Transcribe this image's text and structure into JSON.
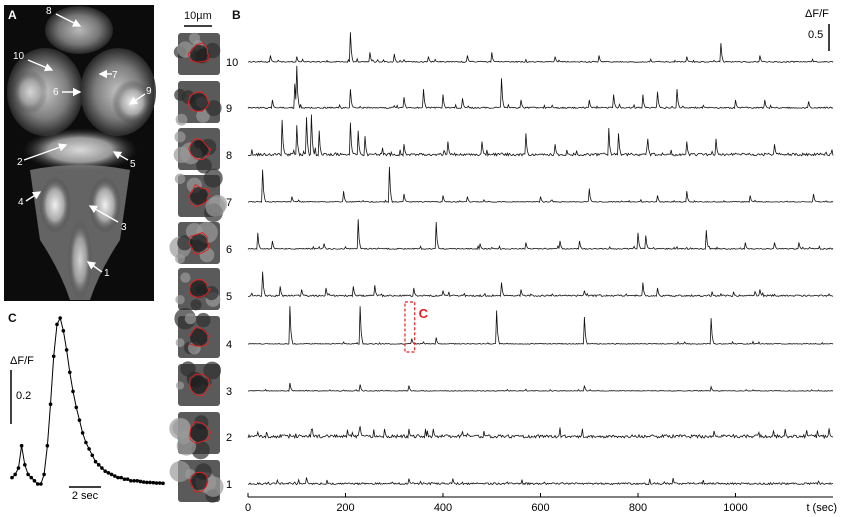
{
  "panel_a": {
    "letter": "A",
    "markers": [
      {
        "label": "8"
      },
      {
        "label": "10"
      },
      {
        "label": "7"
      },
      {
        "label": "6"
      },
      {
        "label": "9"
      },
      {
        "label": "2"
      },
      {
        "label": "5"
      },
      {
        "label": "4"
      },
      {
        "label": "3"
      },
      {
        "label": "1"
      }
    ]
  },
  "roi_column": {
    "scale_bar_label": "10µm",
    "roi_outline_color": "#e02020"
  },
  "colors": {
    "trace": "#111111",
    "highlight": "#e02020"
  },
  "chart_data": [
    {
      "type": "line",
      "panel": "B",
      "xlabel": "t (sec)",
      "xlim": [
        0,
        1200
      ],
      "x_ticks": [
        0,
        200,
        400,
        600,
        800,
        1000
      ],
      "scale_bar": {
        "label": "ΔF/F",
        "value_label": "0.5"
      },
      "highlight_box_label": "C",
      "highlight_box_trace": "4",
      "series": [
        {
          "name": "10",
          "peaks": [
            [
              210,
              0.55
            ],
            [
              45,
              0.12
            ],
            [
              100,
              0.1
            ],
            [
              250,
              0.18
            ],
            [
              300,
              0.15
            ],
            [
              370,
              0.1
            ],
            [
              450,
              0.12
            ],
            [
              500,
              0.18
            ],
            [
              630,
              0.1
            ],
            [
              720,
              0.12
            ],
            [
              900,
              0.1
            ],
            [
              970,
              0.35
            ],
            [
              1050,
              0.12
            ]
          ]
        },
        {
          "name": "9",
          "peaks": [
            [
              100,
              0.78
            ],
            [
              95,
              0.45
            ],
            [
              50,
              0.15
            ],
            [
              210,
              0.35
            ],
            [
              320,
              0.2
            ],
            [
              360,
              0.35
            ],
            [
              400,
              0.25
            ],
            [
              440,
              0.18
            ],
            [
              520,
              0.55
            ],
            [
              560,
              0.15
            ],
            [
              700,
              0.15
            ],
            [
              750,
              0.25
            ],
            [
              810,
              0.25
            ],
            [
              840,
              0.3
            ],
            [
              880,
              0.35
            ],
            [
              1000,
              0.15
            ],
            [
              1060,
              0.15
            ],
            [
              1150,
              0.12
            ]
          ]
        },
        {
          "name": "8",
          "peaks": [
            [
              70,
              0.65
            ],
            [
              100,
              0.55
            ],
            [
              120,
              0.7
            ],
            [
              130,
              0.75
            ],
            [
              145,
              0.45
            ],
            [
              210,
              0.6
            ],
            [
              225,
              0.45
            ],
            [
              240,
              0.35
            ],
            [
              320,
              0.2
            ],
            [
              410,
              0.25
            ],
            [
              480,
              0.25
            ],
            [
              570,
              0.4
            ],
            [
              630,
              0.2
            ],
            [
              740,
              0.5
            ],
            [
              760,
              0.4
            ],
            [
              820,
              0.3
            ],
            [
              900,
              0.25
            ],
            [
              960,
              0.3
            ],
            [
              1080,
              0.2
            ]
          ]
        },
        {
          "name": "7",
          "peaks": [
            [
              30,
              0.6
            ],
            [
              90,
              0.1
            ],
            [
              195,
              0.2
            ],
            [
              290,
              0.65
            ],
            [
              320,
              0.15
            ],
            [
              400,
              0.12
            ],
            [
              450,
              0.1
            ],
            [
              600,
              0.1
            ],
            [
              700,
              0.25
            ],
            [
              840,
              0.12
            ],
            [
              900,
              0.2
            ],
            [
              1030,
              0.12
            ],
            [
              1160,
              0.15
            ]
          ]
        },
        {
          "name": "6",
          "peaks": [
            [
              20,
              0.3
            ],
            [
              50,
              0.15
            ],
            [
              155,
              0.1
            ],
            [
              225,
              0.55
            ],
            [
              385,
              0.5
            ],
            [
              475,
              0.1
            ],
            [
              570,
              0.12
            ],
            [
              640,
              0.15
            ],
            [
              680,
              0.15
            ],
            [
              800,
              0.3
            ],
            [
              815,
              0.25
            ],
            [
              940,
              0.35
            ],
            [
              1020,
              0.12
            ],
            [
              1080,
              0.12
            ],
            [
              1130,
              0.12
            ]
          ]
        },
        {
          "name": "5",
          "peaks": [
            [
              30,
              0.45
            ],
            [
              65,
              0.18
            ],
            [
              110,
              0.12
            ],
            [
              160,
              0.15
            ],
            [
              215,
              0.18
            ],
            [
              260,
              0.2
            ],
            [
              340,
              0.15
            ],
            [
              400,
              0.1
            ],
            [
              520,
              0.25
            ],
            [
              560,
              0.12
            ],
            [
              690,
              0.1
            ],
            [
              810,
              0.25
            ],
            [
              840,
              0.15
            ],
            [
              1050,
              0.12
            ]
          ]
        },
        {
          "name": "4",
          "peaks": [
            [
              85,
              0.7
            ],
            [
              230,
              0.7
            ],
            [
              335,
              0.1
            ],
            [
              385,
              0.12
            ],
            [
              510,
              0.62
            ],
            [
              690,
              0.5
            ],
            [
              950,
              0.48
            ]
          ]
        },
        {
          "name": "3",
          "peaks": [
            [
              85,
              0.15
            ],
            [
              230,
              0.12
            ],
            [
              330,
              0.1
            ],
            [
              690,
              0.1
            ],
            [
              950,
              0.08
            ]
          ]
        },
        {
          "name": "2",
          "peaks": [
            [
              230,
              0.2
            ],
            [
              280,
              0.15
            ],
            [
              330,
              0.15
            ],
            [
              380,
              0.15
            ]
          ]
        },
        {
          "name": "1",
          "peaks": [
            [
              120,
              0.12
            ],
            [
              330,
              0.1
            ],
            [
              420,
              0.1
            ]
          ]
        }
      ]
    },
    {
      "type": "line",
      "panel": "C",
      "scale_bar": {
        "label": "ΔF/F",
        "value_label": "0.2"
      },
      "time_bar_label": "2 sec",
      "x": [
        0.0,
        0.33,
        0.67,
        1.0,
        1.33,
        1.67,
        2.0,
        2.33,
        2.67,
        3.0,
        3.33,
        3.67,
        4.0,
        4.33,
        4.67,
        5.0,
        5.33,
        5.67,
        6.0,
        6.33,
        6.67,
        7.0,
        7.33,
        7.67,
        8.0,
        8.33,
        8.67,
        9.0,
        9.33,
        9.67,
        10.0,
        10.33,
        10.67,
        11.0,
        11.33,
        11.67,
        12.0,
        12.33,
        12.67,
        13.0,
        13.33,
        13.67,
        14.0,
        14.33,
        14.67,
        15.0,
        15.33,
        15.67
      ],
      "y": [
        0.02,
        0.03,
        0.05,
        0.12,
        0.06,
        0.03,
        0.02,
        0.01,
        0.0,
        0.0,
        0.03,
        0.12,
        0.25,
        0.4,
        0.5,
        0.52,
        0.48,
        0.42,
        0.35,
        0.29,
        0.24,
        0.2,
        0.16,
        0.13,
        0.11,
        0.09,
        0.07,
        0.06,
        0.05,
        0.04,
        0.035,
        0.03,
        0.025,
        0.02,
        0.02,
        0.015,
        0.015,
        0.01,
        0.01,
        0.01,
        0.008,
        0.006,
        0.005,
        0.005,
        0.004,
        0.003,
        0.003,
        0.002
      ]
    }
  ]
}
